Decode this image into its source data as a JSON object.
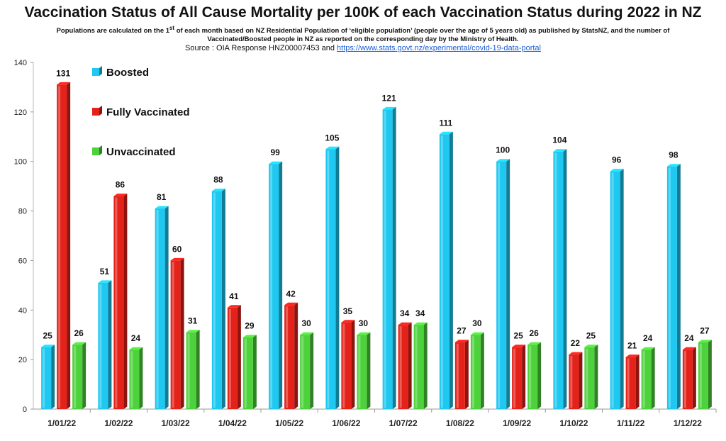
{
  "header": {
    "title": "Vaccination Status of All Cause Mortality per 100K of each Vaccination Status during 2022 in NZ",
    "subtitle_pre": "Populations are calculated on the 1",
    "subtitle_sup": "st",
    "subtitle_post": " of each month based on NZ Residential Population of ‘eligible population’ (people over the age of 5 years old) as published by StatsNZ, and the number of Vaccinated/Boosted people in NZ as reported on the corresponding day by the Ministry of Health.",
    "source_label": "Source : OIA Response HNZ00007453 and",
    "source_link": "https://www.stats.govt.nz/experimental/covid-19-data-portal"
  },
  "chart_data": {
    "type": "bar",
    "title": "Vaccination Status of All Cause Mortality per 100K of each Vaccination Status during 2022 in NZ",
    "xlabel": "",
    "ylabel": "",
    "ylim": [
      0,
      140
    ],
    "yticks": [
      0,
      20,
      40,
      60,
      80,
      100,
      120,
      140
    ],
    "grid": false,
    "legend_position": "top-left",
    "categories": [
      "1/01/22",
      "1/02/22",
      "1/03/22",
      "1/04/22",
      "1/05/22",
      "1/06/22",
      "1/07/22",
      "1/08/22",
      "1/09/22",
      "1/10/22",
      "1/11/22",
      "1/12/22"
    ],
    "series": [
      {
        "name": "Boosted",
        "color": "#1ec8f0",
        "values": [
          25,
          51,
          81,
          88,
          99,
          105,
          121,
          111,
          100,
          104,
          96,
          98
        ]
      },
      {
        "name": "Fully Vaccinated",
        "color": "#e4221a",
        "values": [
          131,
          86,
          60,
          41,
          42,
          35,
          34,
          27,
          25,
          22,
          21,
          24
        ]
      },
      {
        "name": "Unvaccinated",
        "color": "#4ed23c",
        "values": [
          26,
          24,
          31,
          29,
          30,
          30,
          34,
          30,
          26,
          25,
          24,
          27
        ]
      }
    ]
  }
}
